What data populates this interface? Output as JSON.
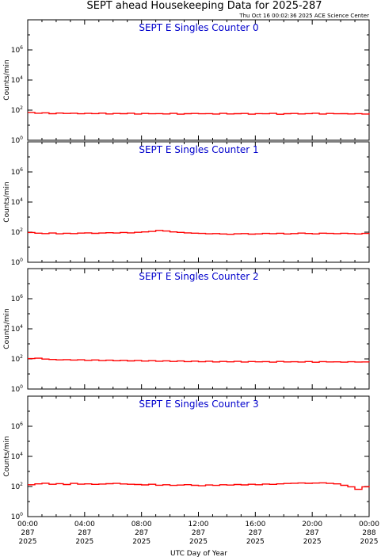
{
  "chart_data": {
    "type": "line",
    "title": "SEPT ahead Housekeeping Data for 2025-287",
    "timestamp": "Thu Oct 16 00:02:36 2025 ACE Science Center",
    "xlabel": "UTC Day of Year",
    "ylabel": "Counts/min",
    "yscale": "log",
    "ylim": [
      1,
      100000000
    ],
    "y_ticks": [
      {
        "base": "10",
        "exp": "0"
      },
      {
        "base": "10",
        "exp": "2"
      },
      {
        "base": "10",
        "exp": "4"
      },
      {
        "base": "10",
        "exp": "6"
      }
    ],
    "x_ticks": [
      {
        "time": "00:00",
        "doy": "287",
        "year": "2025"
      },
      {
        "time": "04:00",
        "doy": "287",
        "year": "2025"
      },
      {
        "time": "08:00",
        "doy": "287",
        "year": "2025"
      },
      {
        "time": "12:00",
        "doy": "287",
        "year": "2025"
      },
      {
        "time": "16:00",
        "doy": "287",
        "year": "2025"
      },
      {
        "time": "20:00",
        "doy": "287",
        "year": "2025"
      },
      {
        "time": "00:00",
        "doy": "288",
        "year": "2025"
      }
    ],
    "xlim_hours": [
      0,
      24
    ],
    "line_color": "#ff0000",
    "panel_title_color": "#0000cc",
    "panels": [
      {
        "title": "SEPT E Singles Counter 0",
        "hours": [
          0,
          0.5,
          1,
          1.5,
          2,
          2.5,
          3,
          3.5,
          4,
          4.5,
          5,
          5.5,
          6,
          6.5,
          7,
          7.5,
          8,
          8.5,
          9,
          9.5,
          10,
          10.5,
          11,
          11.5,
          12,
          12.5,
          13,
          13.5,
          14,
          14.5,
          15,
          15.5,
          16,
          16.5,
          17,
          17.5,
          18,
          18.5,
          19,
          19.5,
          20,
          20.5,
          21,
          21.5,
          22,
          22.5,
          23,
          23.5,
          24
        ],
        "values": [
          70,
          62,
          66,
          58,
          64,
          60,
          62,
          57,
          61,
          59,
          63,
          56,
          60,
          58,
          62,
          55,
          60,
          57,
          59,
          56,
          61,
          54,
          58,
          60,
          57,
          59,
          55,
          61,
          56,
          58,
          60,
          54,
          59,
          57,
          61,
          53,
          58,
          60,
          56,
          59,
          62,
          55,
          60,
          57,
          58,
          56,
          59,
          55,
          62
        ]
      },
      {
        "title": "SEPT E Singles Counter 1",
        "hours": [
          0,
          0.5,
          1,
          1.5,
          2,
          2.5,
          3,
          3.5,
          4,
          4.5,
          5,
          5.5,
          6,
          6.5,
          7,
          7.5,
          8,
          8.5,
          9,
          9.5,
          10,
          10.5,
          11,
          11.5,
          12,
          12.5,
          13,
          13.5,
          14,
          14.5,
          15,
          15.5,
          16,
          16.5,
          17,
          17.5,
          18,
          18.5,
          19,
          19.5,
          20,
          20.5,
          21,
          21.5,
          22,
          22.5,
          23,
          23.5,
          24
        ],
        "values": [
          95,
          85,
          80,
          88,
          78,
          84,
          80,
          86,
          90,
          83,
          88,
          92,
          87,
          95,
          90,
          98,
          104,
          112,
          130,
          118,
          104,
          96,
          90,
          85,
          82,
          78,
          80,
          76,
          72,
          78,
          80,
          74,
          77,
          82,
          79,
          84,
          76,
          80,
          86,
          81,
          77,
          85,
          82,
          79,
          84,
          80,
          76,
          82,
          78
        ]
      },
      {
        "title": "SEPT E Singles Counter 2",
        "hours": [
          0,
          0.5,
          1,
          1.5,
          2,
          2.5,
          3,
          3.5,
          4,
          4.5,
          5,
          5.5,
          6,
          6.5,
          7,
          7.5,
          8,
          8.5,
          9,
          9.5,
          10,
          10.5,
          11,
          11.5,
          12,
          12.5,
          13,
          13.5,
          14,
          14.5,
          15,
          15.5,
          16,
          16.5,
          17,
          17.5,
          18,
          18.5,
          19,
          19.5,
          20,
          20.5,
          21,
          21.5,
          22,
          22.5,
          23,
          23.5,
          24
        ],
        "values": [
          105,
          112,
          98,
          92,
          86,
          90,
          84,
          88,
          80,
          85,
          78,
          82,
          76,
          80,
          74,
          79,
          72,
          77,
          70,
          75,
          68,
          73,
          66,
          71,
          65,
          70,
          63,
          68,
          64,
          69,
          62,
          67,
          64,
          66,
          61,
          68,
          63,
          65,
          62,
          67,
          60,
          66,
          63,
          64,
          61,
          65,
          62,
          63,
          60
        ]
      },
      {
        "title": "SEPT E Singles Counter 3",
        "hours": [
          0,
          0.5,
          1,
          1.5,
          2,
          2.5,
          3,
          3.5,
          4,
          4.5,
          5,
          5.5,
          6,
          6.5,
          7,
          7.5,
          8,
          8.5,
          9,
          9.5,
          10,
          10.5,
          11,
          11.5,
          12,
          12.5,
          13,
          13.5,
          14,
          14.5,
          15,
          15.5,
          16,
          16.5,
          17,
          17.5,
          18,
          18.5,
          19,
          19.5,
          20,
          20.5,
          21,
          21.5,
          22,
          22.5,
          23,
          23.5,
          24
        ],
        "values": [
          130,
          150,
          165,
          140,
          155,
          135,
          160,
          142,
          150,
          138,
          145,
          152,
          160,
          148,
          140,
          135,
          128,
          140,
          122,
          130,
          118,
          125,
          132,
          120,
          112,
          126,
          118,
          130,
          124,
          135,
          128,
          140,
          130,
          145,
          138,
          150,
          158,
          165,
          170,
          162,
          168,
          175,
          160,
          150,
          120,
          95,
          65,
          95,
          110
        ]
      }
    ]
  }
}
